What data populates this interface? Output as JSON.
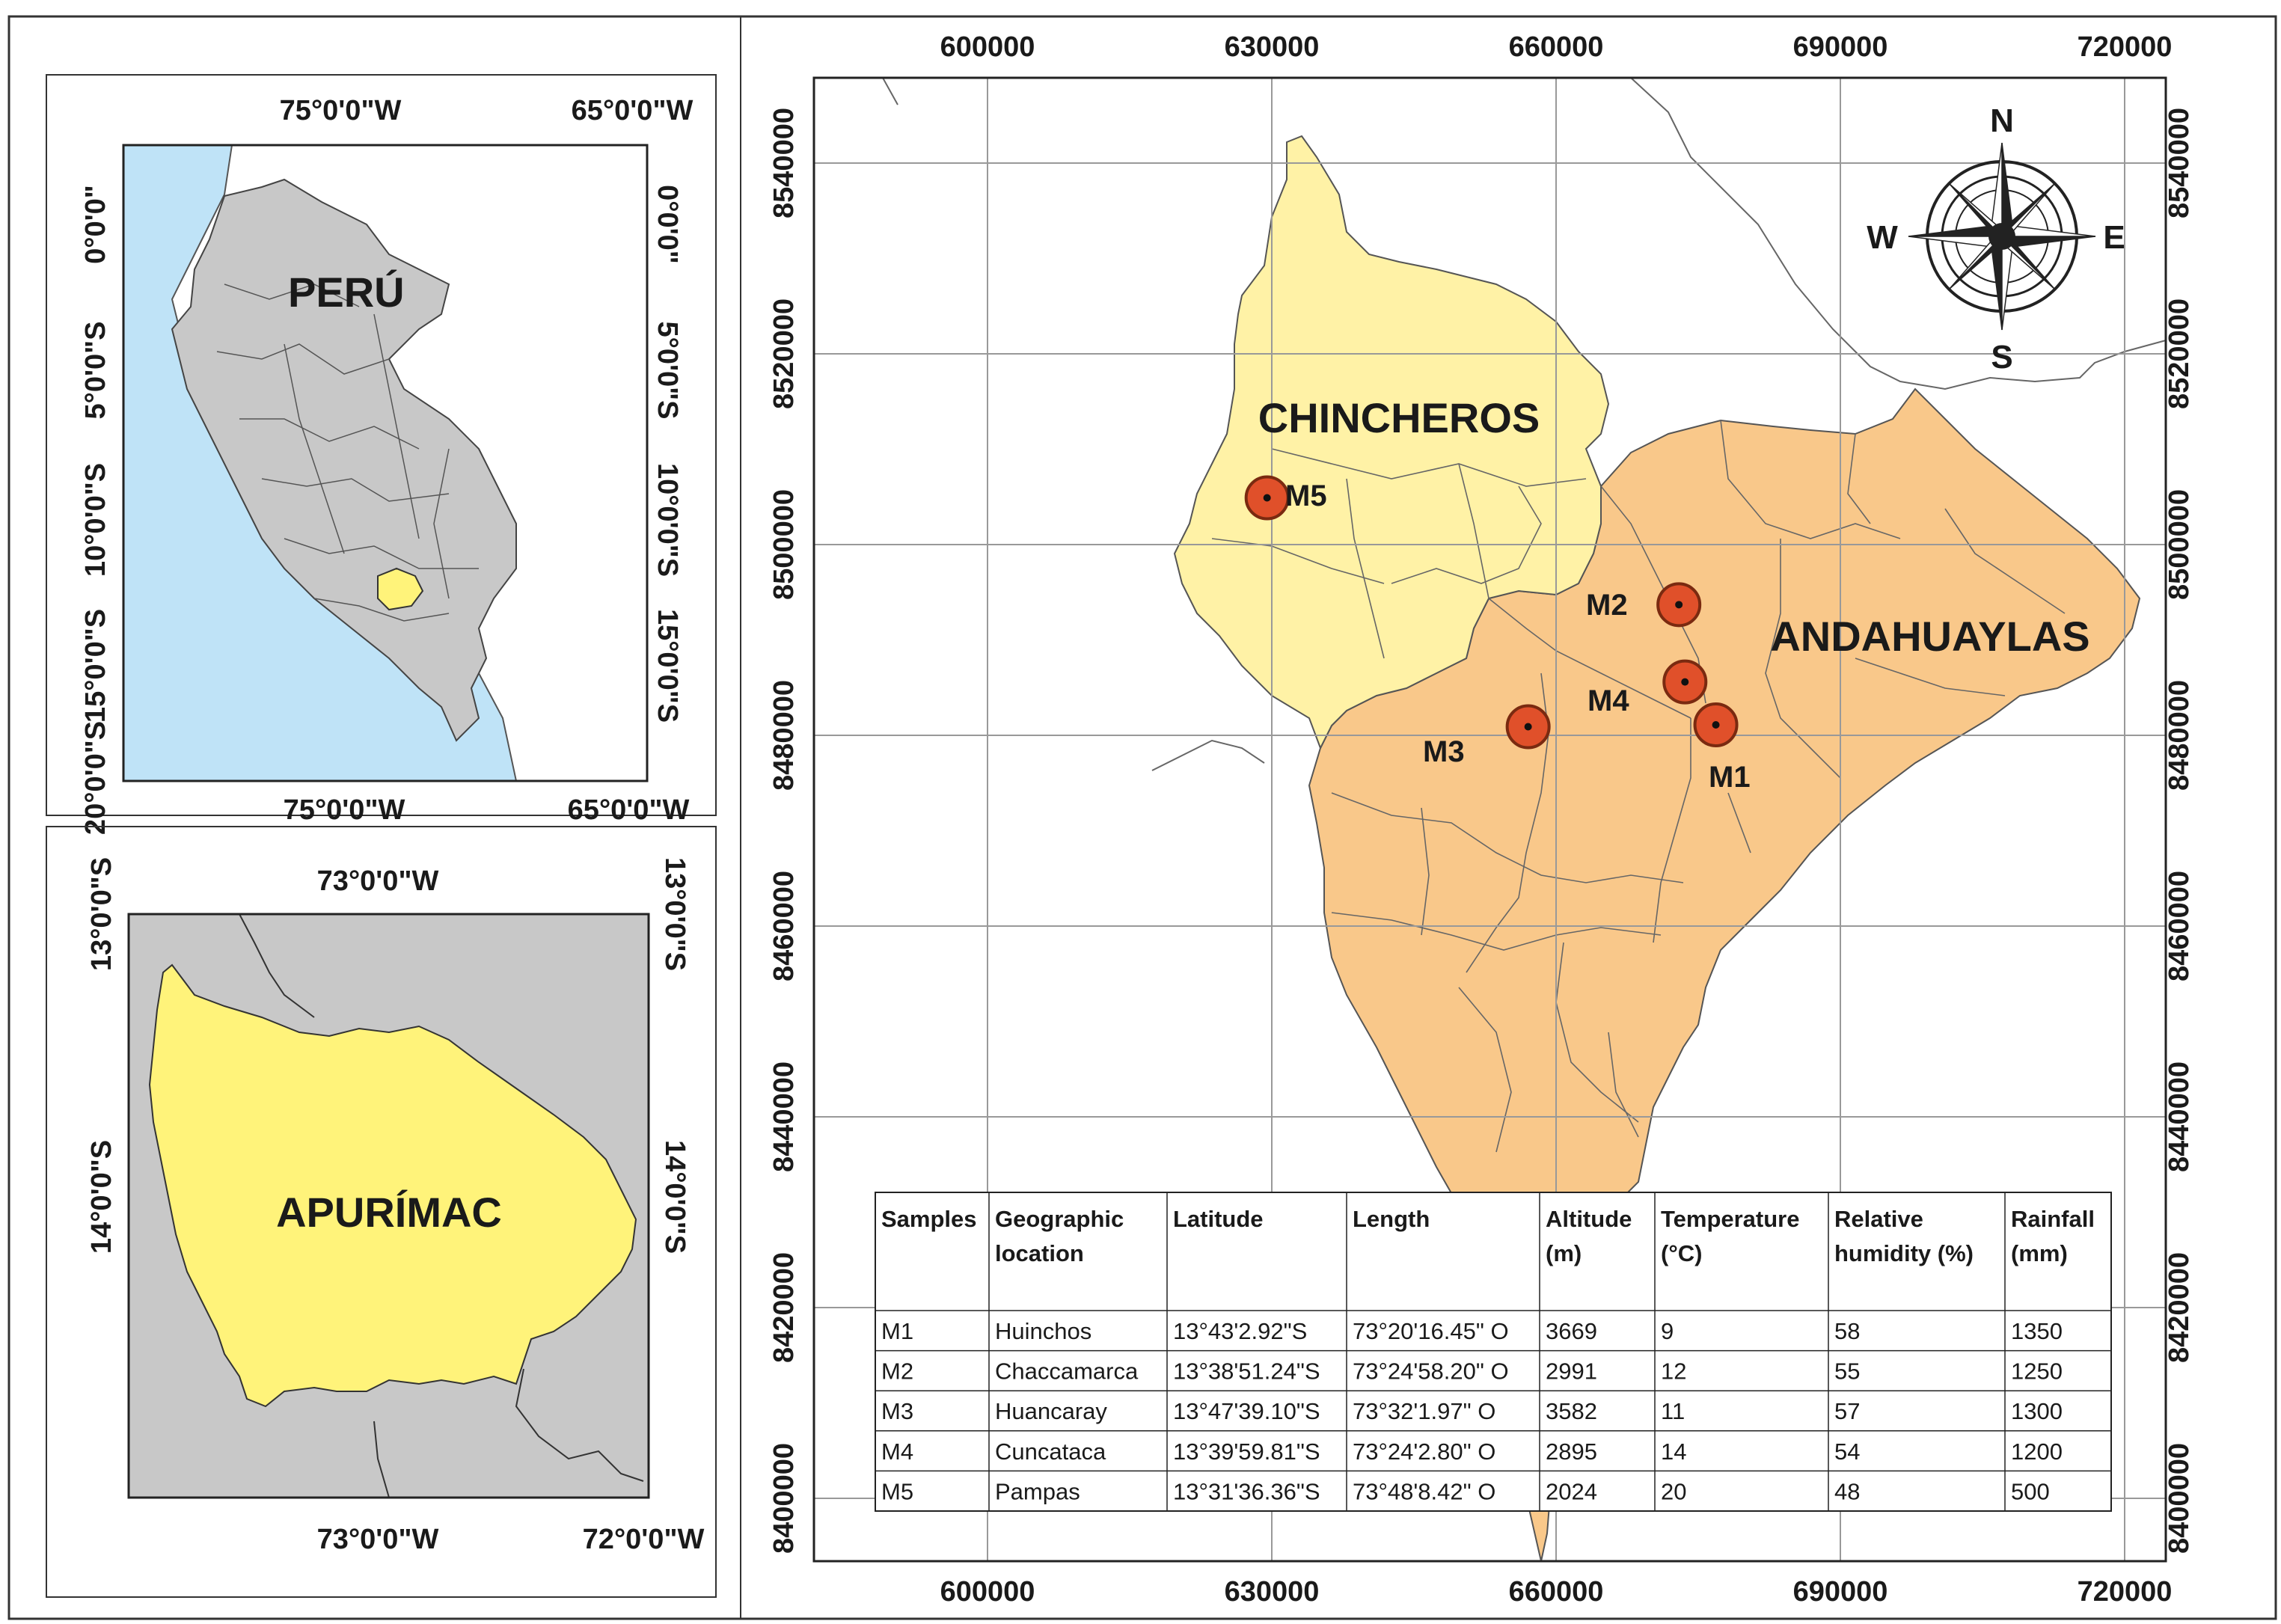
{
  "peru_inset": {
    "top_ticks": [
      "75°0'0\"W",
      "65°0'0\"W"
    ],
    "bottom_ticks": [
      "75°0'0\"W",
      "65°0'0\"W"
    ],
    "left_ticks": [
      "0°0'0\"",
      "5°0'0\"S",
      "10°0'0\"S",
      "15°0'0\"S",
      "20°0'0\"S"
    ],
    "right_ticks": [
      "0°0'0\"",
      "5°0'0\"S",
      "10°0'0\"S",
      "15°0'0\"S"
    ],
    "country_label": "PERÚ",
    "colors": {
      "ocean": "#bfe3f7",
      "country": "#c8c8c8",
      "highlight": "#fff37a"
    }
  },
  "apurimac_inset": {
    "top_ticks": [
      "73°0'0\"W"
    ],
    "bottom_ticks": [
      "73°0'0\"W",
      "72°0'0\"W"
    ],
    "left_ticks": [
      "13°0'0\"S",
      "14°0'0\"S"
    ],
    "right_ticks": [
      "13°0'0\"S",
      "14°0'0\"S"
    ],
    "region_label": "APURÍMAC",
    "colors": {
      "background": "#c8c8c8",
      "region": "#fff37a"
    }
  },
  "main_map": {
    "x_ticks": [
      "600000",
      "630000",
      "660000",
      "690000",
      "720000"
    ],
    "y_ticks": [
      "8540000",
      "8520000",
      "8500000",
      "8480000",
      "8460000",
      "8440000",
      "8420000",
      "8400000"
    ],
    "province_labels": {
      "chincheros": "CHINCHEROS",
      "andahuaylas": "ANDAHUAYLAS"
    },
    "colors": {
      "chincheros": "#fff2a6",
      "andahuaylas": "#f9c88a",
      "site_marker": "#e0502a"
    },
    "compass": {
      "n": "N",
      "s": "S",
      "e": "E",
      "w": "W"
    },
    "sites": [
      {
        "id": "M1",
        "easting": 676860,
        "northing": 8481100
      },
      {
        "id": "M2",
        "easting": 672960,
        "northing": 8493700
      },
      {
        "id": "M3",
        "easting": 657050,
        "northing": 8480900
      },
      {
        "id": "M4",
        "easting": 673600,
        "northing": 8485600
      },
      {
        "id": "M5",
        "easting": 629500,
        "northing": 8504900
      }
    ]
  },
  "table": {
    "headers": [
      [
        "Samples"
      ],
      [
        "Geographic",
        "location"
      ],
      [
        "Latitude"
      ],
      [
        "Length"
      ],
      [
        "Altitude",
        "(m)"
      ],
      [
        "Temperature",
        "(°C)"
      ],
      [
        "Relative",
        "humidity (%)"
      ],
      [
        "Rainfall",
        "(mm)"
      ]
    ],
    "rows": [
      [
        "M1",
        "Huinchos",
        "13°43'2.92\"S",
        "73°20'16.45\" O",
        "3669",
        "9",
        "58",
        "1350"
      ],
      [
        "M2",
        "Chaccamarca",
        "13°38'51.24\"S",
        "73°24'58.20\" O",
        "2991",
        "12",
        "55",
        "1250"
      ],
      [
        "M3",
        "Huancaray",
        "13°47'39.10\"S",
        "73°32'1.97\" O",
        "3582",
        "11",
        "57",
        "1300"
      ],
      [
        "M4",
        "Cuncataca",
        "13°39'59.81\"S",
        "73°24'2.80\" O",
        "2895",
        "14",
        "54",
        "1200"
      ],
      [
        "M5",
        "Pampas",
        "13°31'36.36\"S",
        "73°48'8.42\" O",
        "2024",
        "20",
        "48",
        "500"
      ]
    ]
  }
}
